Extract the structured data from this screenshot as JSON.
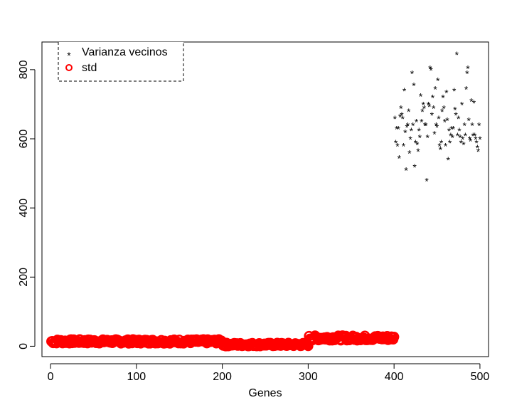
{
  "chart_data": {
    "type": "scatter",
    "title": "",
    "xlabel": "Genes",
    "ylabel": "",
    "xlim": [
      -10,
      510
    ],
    "ylim": [
      -30,
      880
    ],
    "x_ticks": [
      0,
      100,
      200,
      300,
      400,
      500
    ],
    "y_ticks": [
      0,
      200,
      400,
      600,
      800
    ],
    "grid": false,
    "legend": {
      "placement": "top-left",
      "border": "dashed"
    },
    "series": [
      {
        "name": "Varianza vecinos",
        "marker": "asterisk",
        "color": "#000000",
        "x_range": [
          401,
          500
        ],
        "y": [
          660,
          590,
          630,
          580,
          630,
          545,
          665,
          690,
          670,
          660,
          580,
          740,
          620,
          510,
          635,
          640,
          680,
          560,
          600,
          625,
          790,
          640,
          755,
          520,
          590,
          650,
          585,
          565,
          625,
          605,
          725,
          650,
          680,
          700,
          690,
          640,
          640,
          480,
          605,
          700,
          695,
          805,
          800,
          670,
          720,
          690,
          615,
          745,
          640,
          635,
          770,
          660,
          580,
          570,
          590,
          680,
          720,
          690,
          650,
          580,
          735,
          655,
          540,
          625,
          590,
          610,
          630,
          605,
          630,
          740,
          685,
          670,
          845,
          610,
          660,
          625,
          605,
          590,
          700,
          600,
          585,
          640,
          610,
          745,
          790,
          805,
          655,
          600,
          595,
          710,
          640,
          610,
          705,
          610,
          600,
          590,
          575,
          565,
          640,
          600
        ],
        "visible_count": 100
      },
      {
        "name": "std",
        "marker": "open-circle",
        "color": "#ff0000",
        "segments": [
          {
            "x_range": [
              1,
              200
            ],
            "y_mean": 14,
            "y_spread": 6
          },
          {
            "x_range": [
              201,
              300
            ],
            "y_mean": 5,
            "y_spread": 5
          },
          {
            "x_range": [
              301,
              400
            ],
            "y_mean": 24,
            "y_spread": 7
          }
        ]
      }
    ]
  }
}
